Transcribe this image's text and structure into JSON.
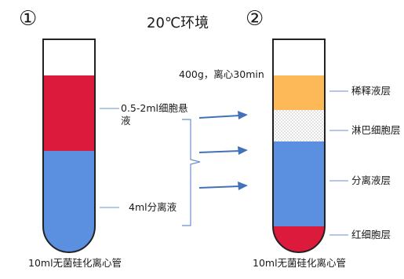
{
  "diagram": {
    "title": "20℃环境",
    "tube1": {
      "number": "①",
      "label_cell": "0.5-2ml细胞悬液",
      "label_cell_line1": "0.5-2ml细胞悬",
      "label_cell_line2": "液",
      "label_sep": "4ml分离液",
      "caption": "10ml无菌硅化离心管"
    },
    "process": "400g，离心30min",
    "tube2": {
      "number": "②",
      "layers": [
        "稀释液层",
        "淋巴细胞层",
        "分离液层",
        "红细胞层"
      ],
      "caption": "10ml无菌硅化离心管"
    },
    "colors": {
      "red": "#dc1a3c",
      "blue": "#5b8fe0",
      "orange": "#fdb857",
      "dots": "#9a9a9a",
      "arrow": "#4472b8",
      "line": "#6a8fcf",
      "outline": "#222222"
    }
  }
}
